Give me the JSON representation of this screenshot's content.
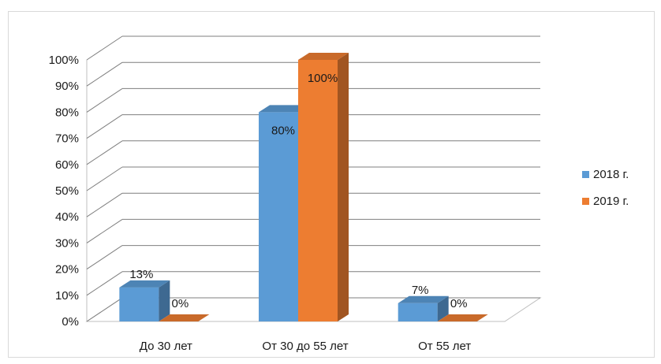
{
  "chart_data": {
    "type": "bar",
    "title": "",
    "xlabel": "",
    "ylabel": "",
    "ylim": [
      0,
      100
    ],
    "y_tick_labels": [
      "0%",
      "10%",
      "20%",
      "30%",
      "40%",
      "50%",
      "60%",
      "70%",
      "80%",
      "90%",
      "100%"
    ],
    "categories": [
      "До 30 лет",
      "От 30 до 55 лет",
      "От 55 лет"
    ],
    "series": [
      {
        "name": "2018 г.",
        "color": "#5b9bd5",
        "values": [
          13,
          80,
          7
        ],
        "data_labels": [
          "13%",
          "80%",
          "7%"
        ]
      },
      {
        "name": "2019 г.",
        "color": "#ed7d31",
        "values": [
          0,
          100,
          0
        ],
        "data_labels": [
          "0%",
          "100%",
          "0%"
        ]
      }
    ],
    "grid": true,
    "legend_position": "right",
    "style": "3d-clustered-column"
  }
}
